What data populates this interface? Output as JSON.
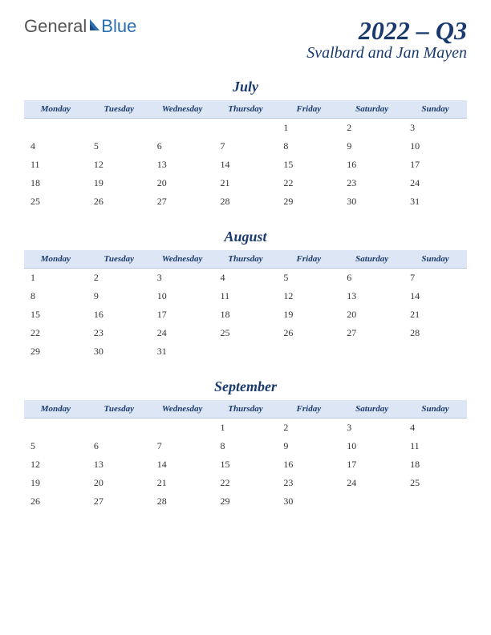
{
  "logo": {
    "part1": "General",
    "part2": "Blue"
  },
  "title": {
    "main": "2022 – Q3",
    "sub": "Svalbard and Jan Mayen"
  },
  "dayHeaders": [
    "Monday",
    "Tuesday",
    "Wednesday",
    "Thursday",
    "Friday",
    "Saturday",
    "Sunday"
  ],
  "headerStyle": {
    "background": "#dce6f4",
    "textColor": "#1a3a6e",
    "borderColor": "#b8c8e0"
  },
  "months": [
    {
      "name": "July",
      "weeks": [
        [
          "",
          "",
          "",
          "",
          "1",
          "2",
          "3"
        ],
        [
          "4",
          "5",
          "6",
          "7",
          "8",
          "9",
          "10"
        ],
        [
          "11",
          "12",
          "13",
          "14",
          "15",
          "16",
          "17"
        ],
        [
          "18",
          "19",
          "20",
          "21",
          "22",
          "23",
          "24"
        ],
        [
          "25",
          "26",
          "27",
          "28",
          "29",
          "30",
          "31"
        ]
      ]
    },
    {
      "name": "August",
      "weeks": [
        [
          "1",
          "2",
          "3",
          "4",
          "5",
          "6",
          "7"
        ],
        [
          "8",
          "9",
          "10",
          "11",
          "12",
          "13",
          "14"
        ],
        [
          "15",
          "16",
          "17",
          "18",
          "19",
          "20",
          "21"
        ],
        [
          "22",
          "23",
          "24",
          "25",
          "26",
          "27",
          "28"
        ],
        [
          "29",
          "30",
          "31",
          "",
          "",
          "",
          ""
        ]
      ]
    },
    {
      "name": "September",
      "weeks": [
        [
          "",
          "",
          "",
          "1",
          "2",
          "3",
          "4"
        ],
        [
          "5",
          "6",
          "7",
          "8",
          "9",
          "10",
          "11"
        ],
        [
          "12",
          "13",
          "14",
          "15",
          "16",
          "17",
          "18"
        ],
        [
          "19",
          "20",
          "21",
          "22",
          "23",
          "24",
          "25"
        ],
        [
          "26",
          "27",
          "28",
          "29",
          "30",
          "",
          ""
        ]
      ]
    }
  ]
}
